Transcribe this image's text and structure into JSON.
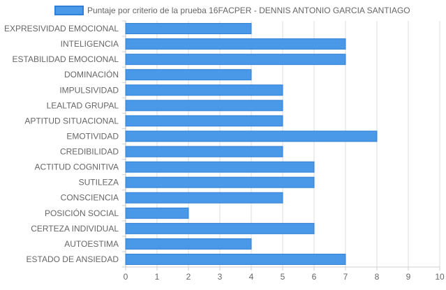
{
  "chart_data": {
    "type": "bar",
    "orientation": "horizontal",
    "categories": [
      "EXPRESIVIDAD EMOCIONAL",
      "INTELIGENCIA",
      "ESTABILIDAD EMOCIONAL",
      "DOMINACIÓN",
      "IMPULSIVIDAD",
      "LEALTAD GRUPAL",
      "APTITUD SITUACIONAL",
      "EMOTIVIDAD",
      "CREDIBILIDAD",
      "ACTITUD COGNITIVA",
      "SUTILEZA",
      "CONSCIENCIA",
      "POSICIÓN SOCIAL",
      "CERTEZA INDIVIDUAL",
      "AUTOESTIMA",
      "ESTADO DE ANSIEDAD"
    ],
    "series": [
      {
        "name": "Puntaje por criterio de la prueba 16FACPER - DENNIS ANTONIO GARCIA SANTIAGO",
        "values": [
          4,
          7,
          7,
          4,
          5,
          5,
          5,
          8,
          5,
          6,
          6,
          5,
          2,
          6,
          4,
          7
        ],
        "color": "#4a98e8",
        "border_color": "#2f7fd6"
      }
    ],
    "title": "",
    "xlabel": "",
    "ylabel": "",
    "xlim": [
      0,
      10
    ],
    "x_ticks": [
      0,
      1,
      2,
      3,
      4,
      5,
      6,
      7,
      8,
      9,
      10
    ],
    "grid": true,
    "legend_position": "top-center"
  }
}
